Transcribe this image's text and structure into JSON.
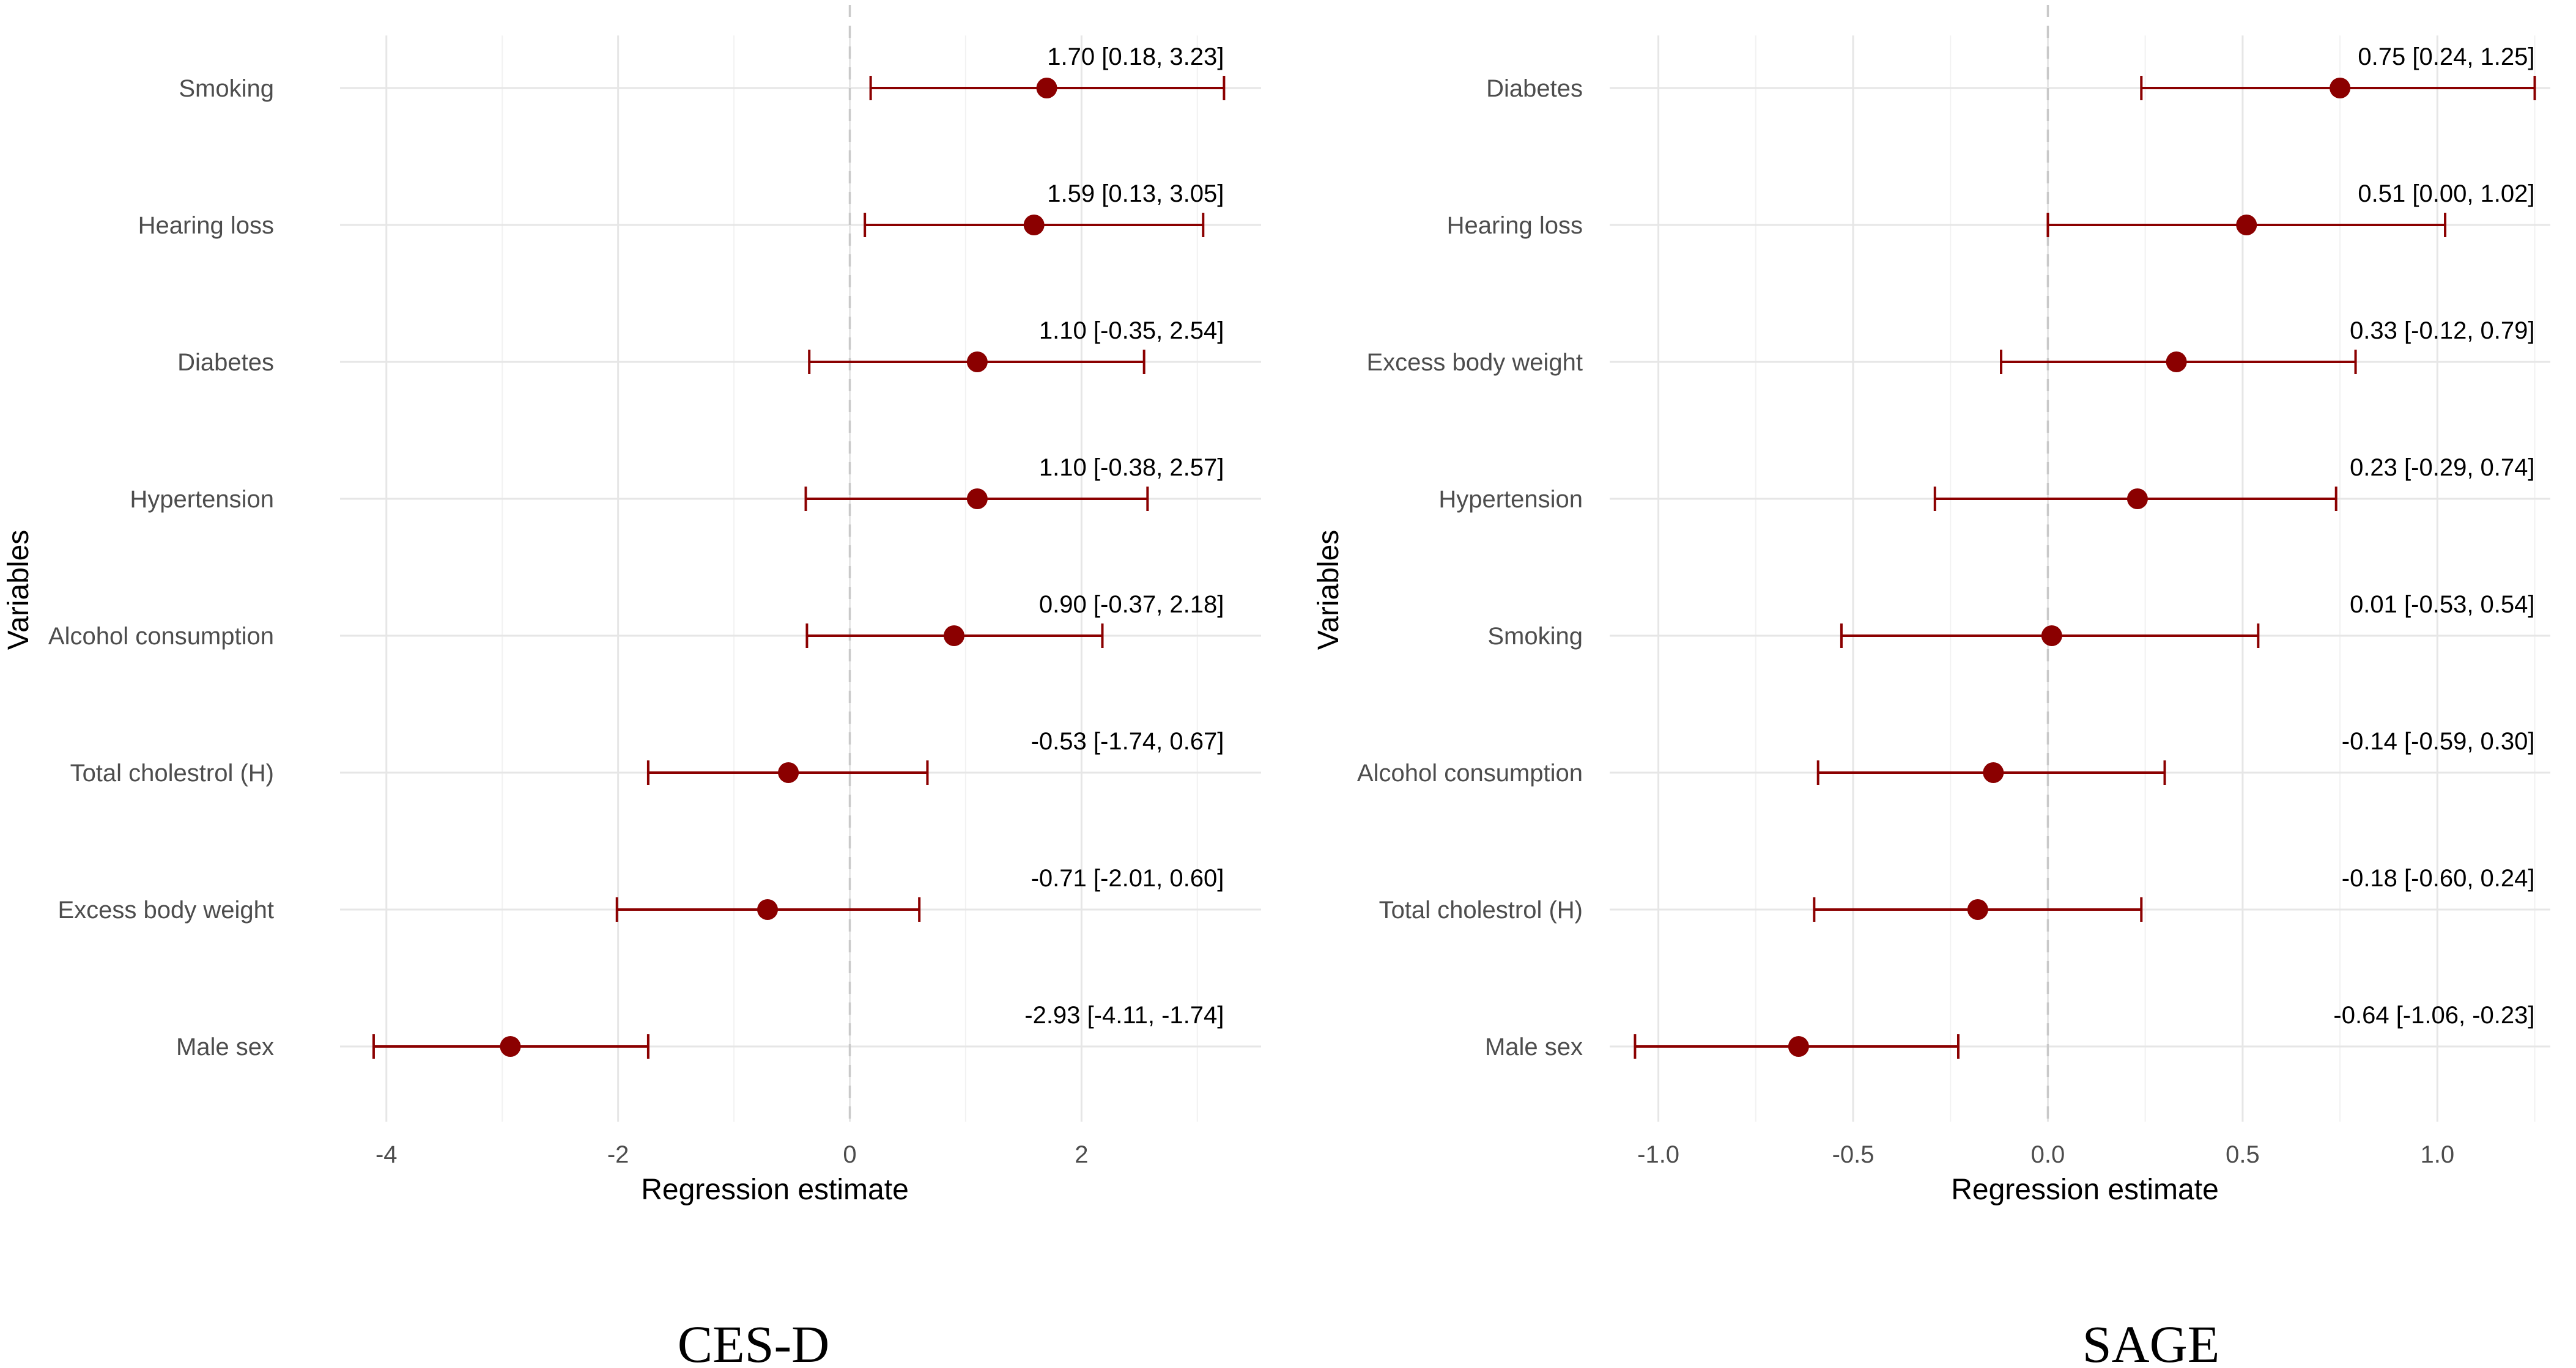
{
  "colors": {
    "point": "#8b0000",
    "grid": "#e6e6e6",
    "zero_line": "#c9c9c9"
  },
  "chart_data": [
    {
      "type": "forest",
      "title": "CES-D",
      "xlabel": "Regression estimate",
      "ylabel": "Variables",
      "xlim": [
        -4.4,
        3.55
      ],
      "major_ticks": [
        -4,
        -2,
        0,
        2
      ],
      "tick_labels": [
        "-4",
        "-2",
        "0",
        "2"
      ],
      "minor_ticks": [
        -3,
        -1,
        1,
        3
      ],
      "categories": [
        "Smoking",
        "Hearing loss",
        "Diabetes",
        "Hypertension",
        "Alcohol consumption",
        "Total cholestrol (H)",
        "Excess body weight",
        "Male sex"
      ],
      "estimates": [
        1.7,
        1.59,
        1.1,
        1.1,
        0.9,
        -0.53,
        -0.71,
        -2.93
      ],
      "lower": [
        0.18,
        0.13,
        -0.35,
        -0.38,
        -0.37,
        -1.74,
        -2.01,
        -4.11
      ],
      "upper": [
        3.23,
        3.05,
        2.54,
        2.57,
        2.18,
        0.67,
        0.6,
        -1.74
      ],
      "labels": [
        "1.70 [0.18, 3.23]",
        "1.59 [0.13, 3.05]",
        "1.10 [-0.35, 2.54]",
        "1.10 [-0.38, 2.57]",
        "0.90 [-0.37, 2.18]",
        "-0.53 [-1.74, 0.67]",
        "-0.71 [-2.01, 0.60]",
        "-2.93 [-4.11, -1.74]"
      ],
      "label_anchor_x": 3.23,
      "reference_line": 0,
      "grid": true
    },
    {
      "type": "forest",
      "title": "SAGE",
      "xlabel": "Regression estimate",
      "ylabel": "Variables",
      "xlim": [
        -1.125,
        1.29
      ],
      "major_ticks": [
        -1.0,
        -0.5,
        0.0,
        0.5,
        1.0
      ],
      "tick_labels": [
        "-1.0",
        "-0.5",
        "0.0",
        "0.5",
        "1.0"
      ],
      "minor_ticks": [
        -0.75,
        -0.25,
        0.25,
        0.75,
        1.25
      ],
      "categories": [
        "Diabetes",
        "Hearing loss",
        "Excess body weight",
        "Hypertension",
        "Smoking",
        "Alcohol consumption",
        "Total cholestrol (H)",
        "Male sex"
      ],
      "estimates": [
        0.75,
        0.51,
        0.33,
        0.23,
        0.01,
        -0.14,
        -0.18,
        -0.64
      ],
      "lower": [
        0.24,
        0.0,
        -0.12,
        -0.29,
        -0.53,
        -0.59,
        -0.6,
        -1.06
      ],
      "upper": [
        1.25,
        1.02,
        0.79,
        0.74,
        0.54,
        0.3,
        0.24,
        -0.23
      ],
      "labels": [
        "0.75 [0.24, 1.25]",
        "0.51 [0.00, 1.02]",
        "0.33 [-0.12, 0.79]",
        "0.23 [-0.29, 0.74]",
        "0.01 [-0.53, 0.54]",
        "-0.14 [-0.59, 0.30]",
        "-0.18 [-0.60, 0.24]",
        "-0.64 [-1.06, -0.23]"
      ],
      "label_anchor_x": 1.25,
      "reference_line": 0,
      "grid": true
    }
  ]
}
